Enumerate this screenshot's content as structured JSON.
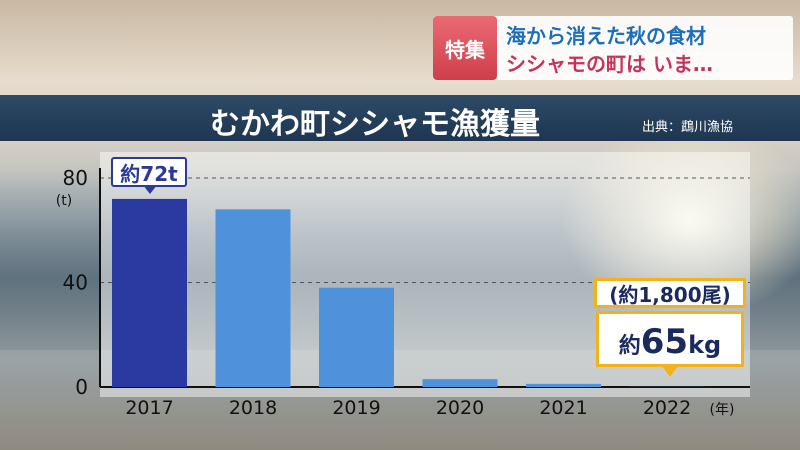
{
  "overlay": {
    "tag": "特集",
    "headline_1": "海から消えた秋の食材",
    "headline_2": "シシャモの町は いま…"
  },
  "header": {
    "title": "むかわ町シシャモ漁獲量",
    "source": "出典：鵡川漁協"
  },
  "annotations": {
    "peak_label": "約72t",
    "count_2022": "(約1,800尾)",
    "weight_2022_prefix": "約",
    "weight_2022_value": "65",
    "weight_2022_unit": "kg"
  },
  "colors": {
    "bar_2017": "#2a3aa0",
    "bar_other": "#4f92db",
    "callout_border": "#f2b21b",
    "title_bar": "#1e3651",
    "tag_bg": "#d9434f"
  },
  "chart_data": {
    "type": "bar",
    "title": "むかわ町シシャモ漁獲量",
    "categories": [
      "2017",
      "2018",
      "2019",
      "2020",
      "2021",
      "2022"
    ],
    "values": [
      72,
      68,
      38,
      3,
      1.2,
      0.065
    ],
    "ylim": [
      0,
      80
    ],
    "yticks": [
      "0",
      "40",
      "80"
    ],
    "y_unit": "(t)",
    "x_unit": "(年)",
    "grid": true
  }
}
